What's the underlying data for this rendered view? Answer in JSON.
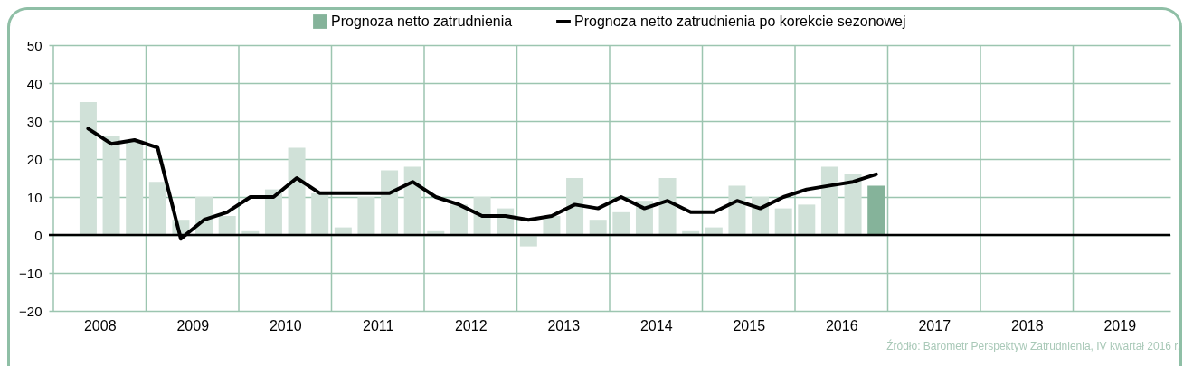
{
  "chart_data": {
    "type": "bar",
    "legend": "top",
    "grid": true,
    "x": [
      2008.375,
      2008.625,
      2008.875,
      2009.125,
      2009.375,
      2009.625,
      2009.875,
      2010.125,
      2010.375,
      2010.625,
      2010.875,
      2011.125,
      2011.375,
      2011.625,
      2011.875,
      2012.125,
      2012.375,
      2012.625,
      2012.875,
      2013.125,
      2013.375,
      2013.625,
      2013.875,
      2014.125,
      2014.375,
      2014.625,
      2014.875,
      2015.125,
      2015.375,
      2015.625,
      2015.875,
      2016.125,
      2016.375,
      2016.625,
      2016.875
    ],
    "xlim": [
      2008,
      2020
    ],
    "xticks": [
      {
        "value": 2008,
        "label": null
      },
      {
        "value": 2008.5,
        "label": "2008"
      },
      {
        "value": 2009,
        "label": null
      },
      {
        "value": 2009.5,
        "label": "2009"
      },
      {
        "value": 2010,
        "label": null
      },
      {
        "value": 2010.5,
        "label": "2010"
      },
      {
        "value": 2011,
        "label": null
      },
      {
        "value": 2011.5,
        "label": "2011"
      },
      {
        "value": 2012,
        "label": null
      },
      {
        "value": 2012.5,
        "label": "2012"
      },
      {
        "value": 2013,
        "label": null
      },
      {
        "value": 2013.5,
        "label": "2013"
      },
      {
        "value": 2014,
        "label": null
      },
      {
        "value": 2014.5,
        "label": "2014"
      },
      {
        "value": 2015,
        "label": null
      },
      {
        "value": 2015.5,
        "label": "2015"
      },
      {
        "value": 2016,
        "label": null
      },
      {
        "value": 2016.5,
        "label": "2016"
      },
      {
        "value": 2017,
        "label": null
      },
      {
        "value": 2017.5,
        "label": "2017"
      },
      {
        "value": 2018,
        "label": null
      },
      {
        "value": 2018.5,
        "label": "2018"
      },
      {
        "value": 2019,
        "label": null
      },
      {
        "value": 2019.5,
        "label": "2019"
      }
    ],
    "ylim": [
      -20,
      50
    ],
    "yticks": [
      -20,
      -10,
      0,
      10,
      20,
      30,
      40,
      50
    ],
    "series": [
      {
        "name": "Prognoza netto zatrudnienia",
        "color": "#85b39a",
        "colors": [
          "#d0e1d8",
          "#d0e1d8",
          "#d0e1d8",
          "#d0e1d8",
          "#d0e1d8",
          "#d0e1d8",
          "#d0e1d8",
          "#d0e1d8",
          "#d0e1d8",
          "#d0e1d8",
          "#d0e1d8",
          "#d0e1d8",
          "#d0e1d8",
          "#d0e1d8",
          "#d0e1d8",
          "#d0e1d8",
          "#d0e1d8",
          "#d0e1d8",
          "#d0e1d8",
          "#d0e1d8",
          "#d0e1d8",
          "#d0e1d8",
          "#d0e1d8",
          "#d0e1d8",
          "#d0e1d8",
          "#d0e1d8",
          "#d0e1d8",
          "#d0e1d8",
          "#d0e1d8",
          "#d0e1d8",
          "#d0e1d8",
          "#d0e1d8",
          "#d0e1d8",
          "#d0e1d8",
          "#85b39a"
        ],
        "values": [
          35,
          26,
          25,
          14,
          4,
          10,
          5,
          1,
          12,
          23,
          11,
          2,
          10,
          17,
          18,
          1,
          8,
          10,
          7,
          -3,
          5,
          15,
          4,
          6,
          9,
          15,
          1,
          2,
          13,
          10,
          7,
          8,
          18,
          16,
          13
        ]
      },
      {
        "name": "Prognoza netto zatrudnienia po korekcie sezonowej",
        "type": "line",
        "color": "#000000",
        "values": [
          28,
          24,
          25,
          23,
          -1,
          4,
          6,
          10,
          10,
          15,
          11,
          11,
          11,
          11,
          14,
          10,
          8,
          5,
          5,
          4,
          5,
          8,
          7,
          10,
          7,
          9,
          6,
          6,
          9,
          7,
          10,
          12,
          13,
          14,
          16
        ]
      }
    ],
    "ref_lines": [
      {
        "axis": "y",
        "value": 0,
        "color": "#000000"
      }
    ],
    "annotations": [
      "Źródło: Barometr Perspektyw Zatrudnienia, IV kwartał 2016 r."
    ]
  }
}
